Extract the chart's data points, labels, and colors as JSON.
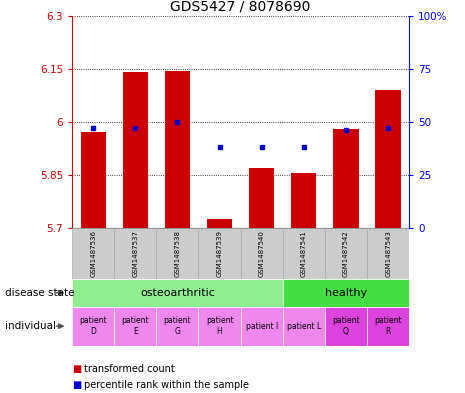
{
  "title": "GDS5427 / 8078690",
  "samples": [
    "GSM1487536",
    "GSM1487537",
    "GSM1487538",
    "GSM1487539",
    "GSM1487540",
    "GSM1487541",
    "GSM1487542",
    "GSM1487543"
  ],
  "red_values": [
    5.97,
    6.14,
    6.145,
    5.725,
    5.87,
    5.855,
    5.98,
    6.09
  ],
  "blue_percentiles": [
    47,
    47,
    50,
    38,
    38,
    38,
    46,
    47
  ],
  "ymin": 5.7,
  "ymax": 6.3,
  "yticks": [
    5.7,
    5.85,
    6.0,
    6.15,
    6.3
  ],
  "ytick_labels": [
    "5.7",
    "5.85",
    "6",
    "6.15",
    "6.3"
  ],
  "right_yticks": [
    0,
    25,
    50,
    75,
    100
  ],
  "right_ytick_labels": [
    "0",
    "25",
    "50",
    "75",
    "100%"
  ],
  "disease_state_groups": [
    {
      "label": "osteoarthritic",
      "start": 0,
      "end": 4,
      "color": "#90ee90"
    },
    {
      "label": "healthy",
      "start": 5,
      "end": 7,
      "color": "#44dd44"
    }
  ],
  "individual_labels": [
    "patient\nD",
    "patient\nE",
    "patient\nG",
    "patient\nH",
    "patient I",
    "patient L",
    "patient\nQ",
    "patient\nR"
  ],
  "individual_colors": [
    "#ee88ee",
    "#ee88ee",
    "#ee88ee",
    "#ee88ee",
    "#ee88ee",
    "#ee88ee",
    "#dd44dd",
    "#dd44dd"
  ],
  "bar_base": 5.7,
  "red_color": "#cc0000",
  "blue_color": "#0000cc",
  "sample_bg_color": "#cccccc",
  "legend_red": "transformed count",
  "legend_blue": "percentile rank within the sample",
  "bar_width": 0.6
}
